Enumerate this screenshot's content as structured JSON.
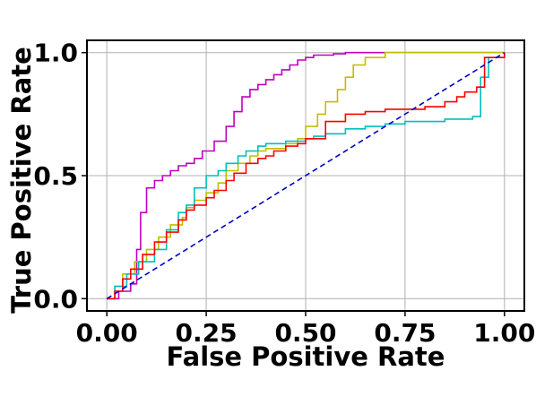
{
  "chart_data": {
    "type": "line",
    "title": "",
    "xlabel": "False Positive Rate",
    "ylabel": "True Positive Rate",
    "xlim": [
      -0.05,
      1.05
    ],
    "ylim": [
      -0.05,
      1.05
    ],
    "x_ticks": [
      0.0,
      0.25,
      0.5,
      0.75,
      1.0
    ],
    "x_tick_labels": [
      "0.00",
      "0.25",
      "0.50",
      "0.75",
      "1.00"
    ],
    "y_ticks": [
      0.0,
      0.5,
      1.0
    ],
    "y_tick_labels": [
      "0.0",
      "0.5",
      "1.0"
    ],
    "grid": true,
    "legend": false,
    "series": [
      {
        "color": "#bf00bf",
        "style": "step",
        "x": [
          0.0,
          0.03,
          0.06,
          0.075,
          0.085,
          0.1,
          0.12,
          0.14,
          0.16,
          0.18,
          0.2,
          0.22,
          0.24,
          0.27,
          0.3,
          0.32,
          0.34,
          0.36,
          0.38,
          0.4,
          0.42,
          0.44,
          0.46,
          0.48,
          0.5,
          0.52,
          0.54,
          0.57,
          0.6,
          0.65,
          0.7,
          0.75,
          0.8,
          1.0
        ],
        "y": [
          0.0,
          0.03,
          0.06,
          0.2,
          0.35,
          0.45,
          0.48,
          0.5,
          0.52,
          0.54,
          0.55,
          0.57,
          0.6,
          0.64,
          0.7,
          0.76,
          0.82,
          0.85,
          0.87,
          0.89,
          0.91,
          0.93,
          0.95,
          0.97,
          0.98,
          0.99,
          0.99,
          0.995,
          1.0,
          1.0,
          1.0,
          1.0,
          1.0,
          1.0
        ]
      },
      {
        "color": "#bfbf00",
        "style": "step",
        "x": [
          0.0,
          0.02,
          0.04,
          0.07,
          0.1,
          0.13,
          0.16,
          0.19,
          0.2,
          0.22,
          0.25,
          0.28,
          0.3,
          0.33,
          0.36,
          0.38,
          0.4,
          0.45,
          0.48,
          0.5,
          0.53,
          0.55,
          0.58,
          0.6,
          0.62,
          0.65,
          0.7,
          0.75,
          1.0
        ],
        "y": [
          0.0,
          0.05,
          0.1,
          0.15,
          0.2,
          0.25,
          0.3,
          0.33,
          0.37,
          0.4,
          0.43,
          0.47,
          0.52,
          0.55,
          0.58,
          0.6,
          0.61,
          0.63,
          0.65,
          0.7,
          0.75,
          0.8,
          0.85,
          0.9,
          0.95,
          0.98,
          1.0,
          1.0,
          1.0
        ]
      },
      {
        "color": "#00bfbf",
        "style": "step",
        "x": [
          0.0,
          0.02,
          0.05,
          0.08,
          0.12,
          0.15,
          0.18,
          0.2,
          0.22,
          0.25,
          0.28,
          0.3,
          0.33,
          0.35,
          0.38,
          0.4,
          0.45,
          0.5,
          0.52,
          0.55,
          0.6,
          0.65,
          0.7,
          0.75,
          0.8,
          0.85,
          0.9,
          0.92,
          0.94,
          0.96,
          1.0
        ],
        "y": [
          0.0,
          0.05,
          0.1,
          0.15,
          0.2,
          0.28,
          0.35,
          0.38,
          0.45,
          0.5,
          0.52,
          0.55,
          0.58,
          0.6,
          0.62,
          0.63,
          0.64,
          0.65,
          0.66,
          0.67,
          0.69,
          0.7,
          0.71,
          0.72,
          0.72,
          0.73,
          0.73,
          0.74,
          0.9,
          0.98,
          1.0
        ]
      },
      {
        "color": "#ff0000",
        "style": "step",
        "x": [
          0.0,
          0.02,
          0.04,
          0.06,
          0.09,
          0.12,
          0.15,
          0.18,
          0.2,
          0.22,
          0.25,
          0.27,
          0.3,
          0.32,
          0.35,
          0.38,
          0.4,
          0.42,
          0.45,
          0.48,
          0.5,
          0.55,
          0.6,
          0.65,
          0.7,
          0.75,
          0.8,
          0.85,
          0.88,
          0.9,
          0.93,
          0.95,
          1.0
        ],
        "y": [
          0.0,
          0.03,
          0.08,
          0.12,
          0.18,
          0.23,
          0.27,
          0.32,
          0.36,
          0.38,
          0.41,
          0.44,
          0.48,
          0.51,
          0.55,
          0.57,
          0.58,
          0.6,
          0.62,
          0.63,
          0.65,
          0.72,
          0.75,
          0.76,
          0.77,
          0.77,
          0.78,
          0.8,
          0.82,
          0.84,
          0.86,
          0.98,
          1.0
        ]
      },
      {
        "color": "#0000cc",
        "style": "dashed",
        "x": [
          0.0,
          1.0
        ],
        "y": [
          0.0,
          1.0
        ]
      }
    ]
  }
}
